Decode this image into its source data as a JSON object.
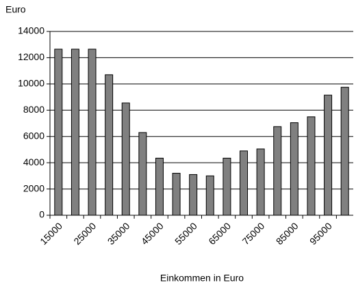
{
  "chart_data": {
    "type": "bar",
    "y_label": "Euro",
    "x_label": "Einkommen in Euro",
    "categories": [
      "15000",
      null,
      "25000",
      null,
      "35000",
      null,
      "45000",
      null,
      "55000",
      null,
      "65000",
      null,
      "75000",
      null,
      "85000",
      null,
      "95000",
      null
    ],
    "values": [
      12650,
      12650,
      12650,
      10700,
      8550,
      6300,
      4350,
      3200,
      3100,
      3000,
      4350,
      4900,
      5050,
      6750,
      7050,
      7500,
      9150,
      9750
    ],
    "color": "#808080",
    "ylim": [
      0,
      14000
    ],
    "yticks": [
      0,
      2000,
      4000,
      6000,
      8000,
      10000,
      12000,
      14000
    ],
    "grid": true
  }
}
